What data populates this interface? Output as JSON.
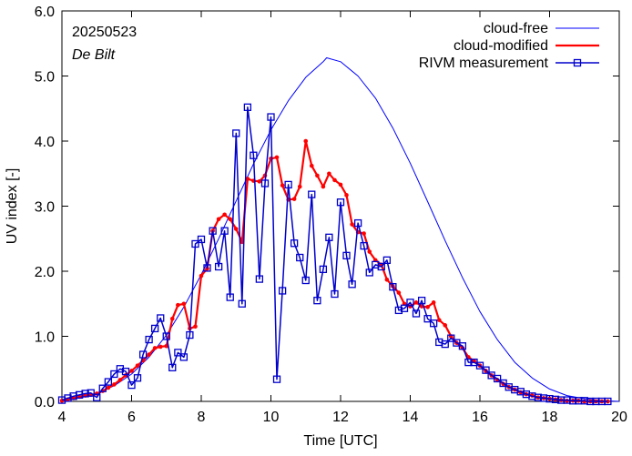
{
  "chart_data": {
    "type": "line",
    "title": "",
    "xlabel": "Time  [UTC]",
    "ylabel": "UV index  [-]",
    "xlim": [
      4,
      20
    ],
    "ylim": [
      0,
      6
    ],
    "xticks": [
      "4",
      "6",
      "8",
      "10",
      "12",
      "14",
      "16",
      "18",
      "20"
    ],
    "yticks": [
      "0.0",
      "1.0",
      "2.0",
      "3.0",
      "4.0",
      "5.0",
      "6.0"
    ],
    "annotations": {
      "date": "20250523",
      "location": "De Bilt"
    },
    "legend_position": "top-right",
    "series": [
      {
        "name": "cloud-free",
        "color": "#0000ff",
        "style": "thin-line",
        "x": [
          4.0,
          4.5,
          5.0,
          5.5,
          6.0,
          6.5,
          7.0,
          7.5,
          8.0,
          8.5,
          9.0,
          9.5,
          10.0,
          10.5,
          11.0,
          11.5,
          11.6,
          12.0,
          12.5,
          13.0,
          13.5,
          14.0,
          14.5,
          15.0,
          15.5,
          16.0,
          16.5,
          17.0,
          17.5,
          18.0,
          18.5,
          19.0,
          19.5,
          20.0
        ],
        "y": [
          0.02,
          0.05,
          0.12,
          0.24,
          0.42,
          0.68,
          1.02,
          1.45,
          1.95,
          2.5,
          3.08,
          3.65,
          4.17,
          4.62,
          4.98,
          5.22,
          5.28,
          5.22,
          5.0,
          4.66,
          4.2,
          3.66,
          3.07,
          2.47,
          1.9,
          1.38,
          0.95,
          0.6,
          0.36,
          0.19,
          0.09,
          0.04,
          0.01,
          0.0
        ]
      },
      {
        "name": "cloud-modified",
        "color": "#ff0000",
        "style": "line-dots",
        "x": [
          4.0,
          4.17,
          4.33,
          4.5,
          4.67,
          4.83,
          5.0,
          5.17,
          5.33,
          5.5,
          5.67,
          5.83,
          6.0,
          6.17,
          6.33,
          6.5,
          6.67,
          6.83,
          7.0,
          7.17,
          7.33,
          7.5,
          7.67,
          7.83,
          8.0,
          8.17,
          8.33,
          8.5,
          8.67,
          8.83,
          9.0,
          9.17,
          9.33,
          9.5,
          9.67,
          9.83,
          10.0,
          10.17,
          10.33,
          10.5,
          10.67,
          10.83,
          11.0,
          11.17,
          11.33,
          11.5,
          11.67,
          11.83,
          12.0,
          12.17,
          12.33,
          12.5,
          12.67,
          12.83,
          13.0,
          13.17,
          13.33,
          13.5,
          13.67,
          13.83,
          14.0,
          14.17,
          14.33,
          14.5,
          14.67,
          14.83,
          15.0,
          15.17,
          15.33,
          15.5,
          15.67,
          15.83,
          16.0,
          16.17,
          16.33,
          16.5,
          16.67,
          16.83,
          17.0,
          17.17,
          17.33,
          17.5,
          17.67,
          17.83,
          18.0,
          18.17,
          18.33,
          18.5,
          18.67,
          18.83,
          19.0,
          19.17,
          19.33,
          19.5,
          19.67
        ],
        "y": [
          0.01,
          0.03,
          0.05,
          0.07,
          0.09,
          0.1,
          0.12,
          0.16,
          0.21,
          0.26,
          0.33,
          0.4,
          0.47,
          0.55,
          0.63,
          0.72,
          0.82,
          0.84,
          0.85,
          1.27,
          1.48,
          1.5,
          1.12,
          1.15,
          1.93,
          2.04,
          2.62,
          2.8,
          2.87,
          2.8,
          2.65,
          2.45,
          3.42,
          3.39,
          3.38,
          3.47,
          3.73,
          3.75,
          3.32,
          3.1,
          3.11,
          3.3,
          4.0,
          3.62,
          3.47,
          3.3,
          3.5,
          3.4,
          3.33,
          3.17,
          2.72,
          2.6,
          2.58,
          2.3,
          2.17,
          2.1,
          1.87,
          1.77,
          1.67,
          1.5,
          1.46,
          1.52,
          1.46,
          1.45,
          1.52,
          1.25,
          1.17,
          1.0,
          0.9,
          0.82,
          0.68,
          0.62,
          0.55,
          0.47,
          0.4,
          0.33,
          0.27,
          0.22,
          0.18,
          0.14,
          0.11,
          0.09,
          0.06,
          0.05,
          0.04,
          0.03,
          0.02,
          0.01,
          0.01,
          0.01,
          0.0,
          0.0,
          0.0,
          0.0,
          0.0
        ]
      },
      {
        "name": "RIVM measurement",
        "color": "#0000cc",
        "style": "line-squares",
        "x": [
          4.0,
          4.17,
          4.33,
          4.5,
          4.67,
          4.83,
          5.0,
          5.17,
          5.33,
          5.5,
          5.67,
          5.83,
          6.0,
          6.17,
          6.33,
          6.5,
          6.67,
          6.83,
          7.0,
          7.17,
          7.33,
          7.5,
          7.67,
          7.83,
          8.0,
          8.17,
          8.33,
          8.5,
          8.67,
          8.83,
          9.0,
          9.17,
          9.33,
          9.5,
          9.67,
          9.83,
          10.0,
          10.17,
          10.33,
          10.5,
          10.67,
          10.83,
          11.0,
          11.17,
          11.33,
          11.5,
          11.67,
          11.83,
          12.0,
          12.17,
          12.33,
          12.5,
          12.67,
          12.83,
          13.0,
          13.17,
          13.33,
          13.5,
          13.67,
          13.83,
          14.0,
          14.17,
          14.33,
          14.5,
          14.67,
          14.83,
          15.0,
          15.17,
          15.33,
          15.5,
          15.67,
          15.83,
          16.0,
          16.17,
          16.33,
          16.5,
          16.67,
          16.83,
          17.0,
          17.17,
          17.33,
          17.5,
          17.67,
          17.83,
          18.0,
          18.17,
          18.33,
          18.5,
          18.67,
          18.83,
          19.0,
          19.17,
          19.33,
          19.5,
          19.67
        ],
        "y": [
          0.02,
          0.05,
          0.08,
          0.1,
          0.12,
          0.13,
          0.06,
          0.2,
          0.3,
          0.42,
          0.5,
          0.46,
          0.25,
          0.36,
          0.72,
          0.95,
          1.12,
          1.28,
          1.0,
          0.52,
          0.75,
          0.68,
          1.02,
          2.42,
          2.49,
          2.05,
          2.62,
          2.07,
          2.62,
          1.6,
          4.12,
          1.5,
          4.52,
          3.78,
          1.88,
          3.35,
          4.37,
          0.34,
          1.7,
          3.33,
          2.43,
          2.21,
          1.86,
          3.18,
          1.55,
          2.03,
          2.52,
          1.65,
          3.06,
          2.24,
          1.8,
          2.74,
          2.39,
          1.98,
          2.1,
          2.07,
          2.17,
          1.76,
          1.4,
          1.43,
          1.52,
          1.35,
          1.55,
          1.27,
          1.2,
          0.91,
          0.88,
          0.97,
          0.9,
          0.85,
          0.6,
          0.6,
          0.55,
          0.48,
          0.4,
          0.35,
          0.28,
          0.22,
          0.18,
          0.15,
          0.11,
          0.08,
          0.06,
          0.05,
          0.04,
          0.03,
          0.02,
          0.02,
          0.01,
          0.01,
          0.01,
          0.0,
          0.0,
          0.0,
          0.0
        ]
      }
    ]
  }
}
